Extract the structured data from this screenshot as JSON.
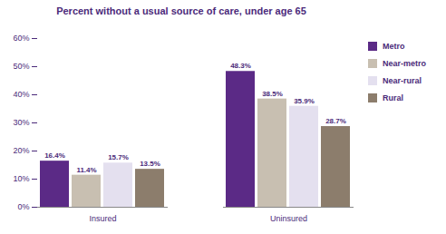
{
  "chart_data": {
    "type": "bar",
    "title": "Percent without a usual source of care, under age 65",
    "categories": [
      "Insured",
      "Uninsured"
    ],
    "series": [
      {
        "name": "Metro",
        "color": "#5b2a86",
        "values": [
          16.4,
          48.3
        ],
        "value_labels": [
          "16.4%",
          "48.3%"
        ]
      },
      {
        "name": "Near-metro",
        "color": "#c8bfb1",
        "values": [
          11.4,
          38.5
        ],
        "value_labels": [
          "11.4%",
          "38.5%"
        ]
      },
      {
        "name": "Near-rural",
        "color": "#e4e0ef",
        "values": [
          15.7,
          35.9
        ],
        "value_labels": [
          "15.7%",
          "35.9%"
        ]
      },
      {
        "name": "Rural",
        "color": "#8c7d6c",
        "values": [
          13.5,
          28.7
        ],
        "value_labels": [
          "13.5%",
          "28.7%"
        ]
      }
    ],
    "ylim": [
      0,
      60
    ],
    "yticks": [
      {
        "value": 0,
        "label": "0%"
      },
      {
        "value": 10,
        "label": "10%"
      },
      {
        "value": 20,
        "label": "20%"
      },
      {
        "value": 30,
        "label": "30%"
      },
      {
        "value": 40,
        "label": "40%"
      },
      {
        "value": 50,
        "label": "50%"
      },
      {
        "value": 60,
        "label": "60%"
      }
    ],
    "grid": false,
    "legend": "right",
    "data_labels": true
  }
}
